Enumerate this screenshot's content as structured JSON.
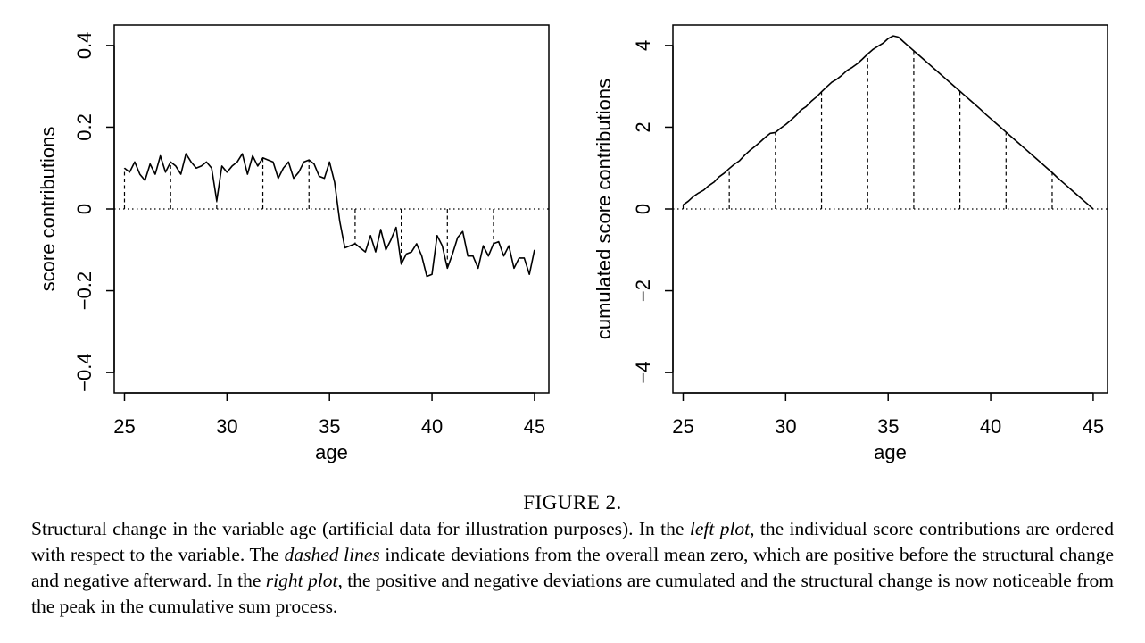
{
  "chart_data": [
    {
      "type": "line",
      "xlabel": "age",
      "ylabel": "score contributions",
      "color": "#000000",
      "x": [
        25,
        25.25,
        25.5,
        25.75,
        26,
        26.25,
        26.5,
        26.75,
        27,
        27.25,
        27.5,
        27.75,
        28,
        28.25,
        28.5,
        28.75,
        29,
        29.25,
        29.5,
        29.75,
        30,
        30.25,
        30.5,
        30.75,
        31,
        31.25,
        31.5,
        31.75,
        32,
        32.25,
        32.5,
        32.75,
        33,
        33.25,
        33.5,
        33.75,
        34,
        34.25,
        34.5,
        34.75,
        35,
        35.25,
        35.5,
        35.75,
        36,
        36.25,
        36.5,
        36.75,
        37,
        37.25,
        37.5,
        37.75,
        38,
        38.25,
        38.5,
        38.75,
        39,
        39.25,
        39.5,
        39.75,
        40,
        40.25,
        40.5,
        40.75,
        41,
        41.25,
        41.5,
        41.75,
        42,
        42.25,
        42.5,
        42.75,
        43,
        43.25,
        43.5,
        43.75,
        44,
        44.25,
        44.5,
        44.75,
        45
      ],
      "values": [
        0.1,
        0.09,
        0.115,
        0.085,
        0.07,
        0.11,
        0.085,
        0.13,
        0.09,
        0.115,
        0.105,
        0.085,
        0.135,
        0.115,
        0.1,
        0.105,
        0.115,
        0.1,
        0.02,
        0.105,
        0.09,
        0.105,
        0.115,
        0.135,
        0.085,
        0.13,
        0.105,
        0.125,
        0.12,
        0.115,
        0.075,
        0.1,
        0.115,
        0.075,
        0.09,
        0.115,
        0.12,
        0.11,
        0.08,
        0.075,
        0.115,
        0.065,
        -0.03,
        -0.095,
        -0.09,
        -0.085,
        -0.095,
        -0.105,
        -0.065,
        -0.105,
        -0.05,
        -0.1,
        -0.075,
        -0.045,
        -0.135,
        -0.11,
        -0.105,
        -0.085,
        -0.115,
        -0.165,
        -0.16,
        -0.065,
        -0.09,
        -0.145,
        -0.11,
        -0.07,
        -0.055,
        -0.115,
        -0.115,
        -0.145,
        -0.09,
        -0.115,
        -0.085,
        -0.08,
        -0.115,
        -0.09,
        -0.145,
        -0.12,
        -0.12,
        -0.16,
        -0.1
      ],
      "xlim": [
        24.5,
        45.7
      ],
      "ylim": [
        -0.45,
        0.45
      ],
      "xticks": [
        25,
        30,
        35,
        40,
        45
      ],
      "yticks": [
        {
          "value": -0.4,
          "label": "−0.4"
        },
        {
          "value": -0.2,
          "label": "−0.2"
        },
        0,
        0.2,
        0.4
      ]
    },
    {
      "type": "line",
      "xlabel": "age",
      "ylabel": "cumulated score contributions",
      "color": "#000000",
      "x": [
        25,
        25.25,
        25.5,
        25.75,
        26,
        26.25,
        26.5,
        26.75,
        27,
        27.25,
        27.5,
        27.75,
        28,
        28.25,
        28.5,
        28.75,
        29,
        29.25,
        29.5,
        29.75,
        30,
        30.25,
        30.5,
        30.75,
        31,
        31.25,
        31.5,
        31.75,
        32,
        32.25,
        32.5,
        32.75,
        33,
        33.25,
        33.5,
        33.75,
        34,
        34.25,
        34.5,
        34.75,
        35,
        35.25,
        35.5,
        35.75,
        36,
        36.25,
        36.5,
        36.75,
        37,
        37.25,
        37.5,
        37.75,
        38,
        38.25,
        38.5,
        38.75,
        39,
        39.25,
        39.5,
        39.75,
        40,
        40.25,
        40.5,
        40.75,
        41,
        41.25,
        41.5,
        41.75,
        42,
        42.25,
        42.5,
        42.75,
        43,
        43.25,
        43.5,
        43.75,
        44,
        44.25,
        44.5,
        44.75,
        45
      ],
      "values": [
        0.1,
        0.19,
        0.305,
        0.39,
        0.46,
        0.57,
        0.655,
        0.785,
        0.875,
        0.99,
        1.095,
        1.18,
        1.315,
        1.43,
        1.53,
        1.635,
        1.75,
        1.85,
        1.87,
        1.975,
        2.065,
        2.17,
        2.285,
        2.42,
        2.505,
        2.635,
        2.74,
        2.865,
        2.985,
        3.1,
        3.175,
        3.275,
        3.39,
        3.465,
        3.555,
        3.67,
        3.79,
        3.9,
        3.98,
        4.055,
        4.17,
        4.235,
        4.205,
        4.09,
        3.98,
        3.87,
        3.76,
        3.65,
        3.54,
        3.43,
        3.32,
        3.21,
        3.1,
        2.99,
        2.88,
        2.77,
        2.66,
        2.55,
        2.44,
        2.32,
        2.21,
        2.1,
        1.99,
        1.88,
        1.77,
        1.66,
        1.55,
        1.44,
        1.33,
        1.22,
        1.11,
        1.0,
        0.89,
        0.77,
        0.66,
        0.55,
        0.44,
        0.33,
        0.22,
        0.11,
        0.0
      ],
      "xlim": [
        24.5,
        45.7
      ],
      "ylim": [
        -4.5,
        4.5
      ],
      "xticks": [
        25,
        30,
        35,
        40,
        45
      ],
      "yticks": [
        {
          "value": -4,
          "label": "−4"
        },
        {
          "value": -2,
          "label": "−2"
        },
        0,
        2,
        4
      ]
    }
  ],
  "caption": {
    "label": "FIGURE 2.",
    "segments": [
      "Structural change in the variable age (artificial data for illustration purposes). In the ",
      "left plot",
      ", the individual score contributions are ordered with respect to the variable. The ",
      "dashed lines",
      " indicate deviations from the overall mean zero, which are positive before the structural change and negative afterward. In the ",
      "right plot",
      ", the positive and negative deviations are cumulated and the structural change is now noticeable from the peak in the cumulative sum process."
    ]
  }
}
